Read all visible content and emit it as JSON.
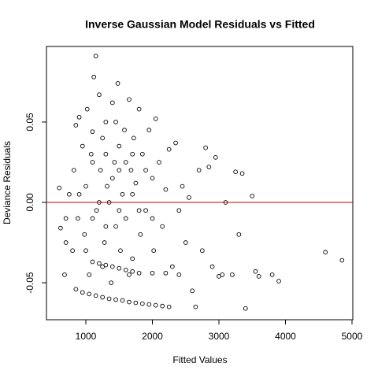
{
  "chart_data": {
    "type": "scatter",
    "title": "Inverse Gaussian Model Residuals vs Fitted",
    "x_label": "Fitted Values",
    "y_label": "Deviance Residuals",
    "color": "#000000",
    "reference_line": {
      "y": 0,
      "color": "#cc0000"
    },
    "xlim": [
      408,
      5012
    ],
    "xticks": [
      1000,
      2000,
      3000,
      4000,
      5000
    ],
    "ylim": [
      -0.073,
      0.097
    ],
    "yticks": [
      {
        "value": -0.05,
        "label": "-0.05"
      },
      {
        "value": 0,
        "label": "0.00"
      },
      {
        "value": 0.05,
        "label": "0.05"
      }
    ],
    "x": [
      850,
      950,
      1050,
      1150,
      1250,
      1350,
      1450,
      1550,
      1650,
      1750,
      1850,
      1950,
      2050,
      2150,
      2250,
      1100,
      1200,
      1300,
      1400,
      1500,
      1600,
      1700,
      1800,
      2000,
      2200,
      2400,
      600,
      620,
      680,
      700,
      750,
      800,
      820,
      850,
      880,
      900,
      950,
      980,
      1000,
      1020,
      1050,
      1080,
      1100,
      1120,
      1150,
      1160,
      1200,
      1220,
      1250,
      1280,
      1300,
      1320,
      1350,
      1380,
      1400,
      1430,
      1450,
      1480,
      1500,
      1520,
      1550,
      1580,
      1600,
      1650,
      1680,
      1700,
      1720,
      1750,
      1800,
      1820,
      1850,
      1900,
      1950,
      2000,
      2020,
      2050,
      2100,
      2150,
      2200,
      2250,
      2300,
      2350,
      2400,
      2450,
      2500,
      2550,
      2600,
      2650,
      2700,
      2750,
      2800,
      2850,
      2900,
      2950,
      3000,
      3050,
      3100,
      3200,
      3250,
      3300,
      3350,
      3400,
      3500,
      3550,
      3600,
      3800,
      3900,
      4600,
      4850,
      700,
      900,
      1000,
      1100,
      1200,
      1300,
      1400,
      1500,
      1600,
      1700,
      1800,
      1900,
      2000,
      1100,
      1300,
      1500,
      1700,
      1250,
      1450,
      1650
    ],
    "y": [
      -0.054,
      -0.056,
      -0.057,
      -0.058,
      -0.059,
      -0.06,
      -0.0605,
      -0.061,
      -0.062,
      -0.0625,
      -0.063,
      -0.0635,
      -0.064,
      -0.0645,
      -0.065,
      -0.037,
      -0.038,
      -0.039,
      -0.04,
      -0.041,
      -0.042,
      -0.043,
      -0.044,
      -0.044,
      -0.044,
      -0.045,
      0.009,
      -0.016,
      -0.045,
      -0.025,
      0.005,
      -0.03,
      0.02,
      0.048,
      -0.01,
      0.053,
      0.035,
      -0.02,
      0.01,
      0.058,
      -0.045,
      0.03,
      0.044,
      0.078,
      0.091,
      -0.005,
      0.067,
      0.02,
      0.04,
      -0.025,
      0.05,
      0.01,
      0.0,
      -0.05,
      0.062,
      0.025,
      -0.015,
      0.074,
      0.035,
      -0.03,
      0.005,
      0.045,
      -0.01,
      0.064,
      0.02,
      -0.035,
      0.04,
      0.012,
      0.058,
      -0.02,
      0.03,
      -0.005,
      0.045,
      0.015,
      -0.03,
      0.052,
      0.025,
      -0.015,
      0.008,
      0.033,
      -0.04,
      0.037,
      -0.005,
      0.01,
      -0.025,
      0.003,
      -0.055,
      -0.065,
      0.02,
      -0.03,
      0.034,
      0.022,
      -0.04,
      0.028,
      -0.046,
      -0.045,
      0.0,
      -0.045,
      0.019,
      -0.02,
      0.018,
      -0.066,
      0.004,
      -0.043,
      -0.046,
      -0.045,
      -0.049,
      -0.031,
      -0.036,
      -0.01,
      0.005,
      -0.03,
      -0.01,
      0.0,
      -0.015,
      0.015,
      -0.005,
      0.025,
      0.005,
      -0.005,
      0.02,
      -0.01,
      0.025,
      0.03,
      0.02,
      0.03,
      -0.04,
      0.05,
      -0.045
    ]
  }
}
